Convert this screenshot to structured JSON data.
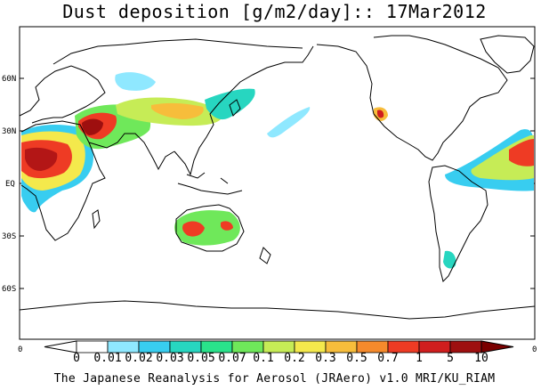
{
  "title": "Dust deposition [g/m2/day]:: 17Mar2012",
  "footer": "The Japanese Reanalysis for Aerosol (JRAero) v1.0 MRI/KU_RIAM",
  "lat_labels": [
    "60N",
    "30N",
    "EQ",
    "30S",
    "60S"
  ],
  "axis_corner_labels": {
    "left": "0",
    "right": "0"
  },
  "colorbar": {
    "labels": [
      "0",
      "0.01",
      "0.02",
      "0.03",
      "0.05",
      "0.07",
      "0.1",
      "0.2",
      "0.3",
      "0.5",
      "0.7",
      "1",
      "5",
      "10"
    ],
    "colors": [
      "#ffffff",
      "#ffffff",
      "#8fe8ff",
      "#38cdf0",
      "#27d6c0",
      "#2ae28b",
      "#6fe85a",
      "#c6ec56",
      "#f4e94c",
      "#f7bd3b",
      "#f58a2c",
      "#ee3b24",
      "#d01e1e",
      "#9e0f0f",
      "#7a0000"
    ]
  },
  "colors": {
    "coast": "#000000",
    "frame": "#000000"
  }
}
